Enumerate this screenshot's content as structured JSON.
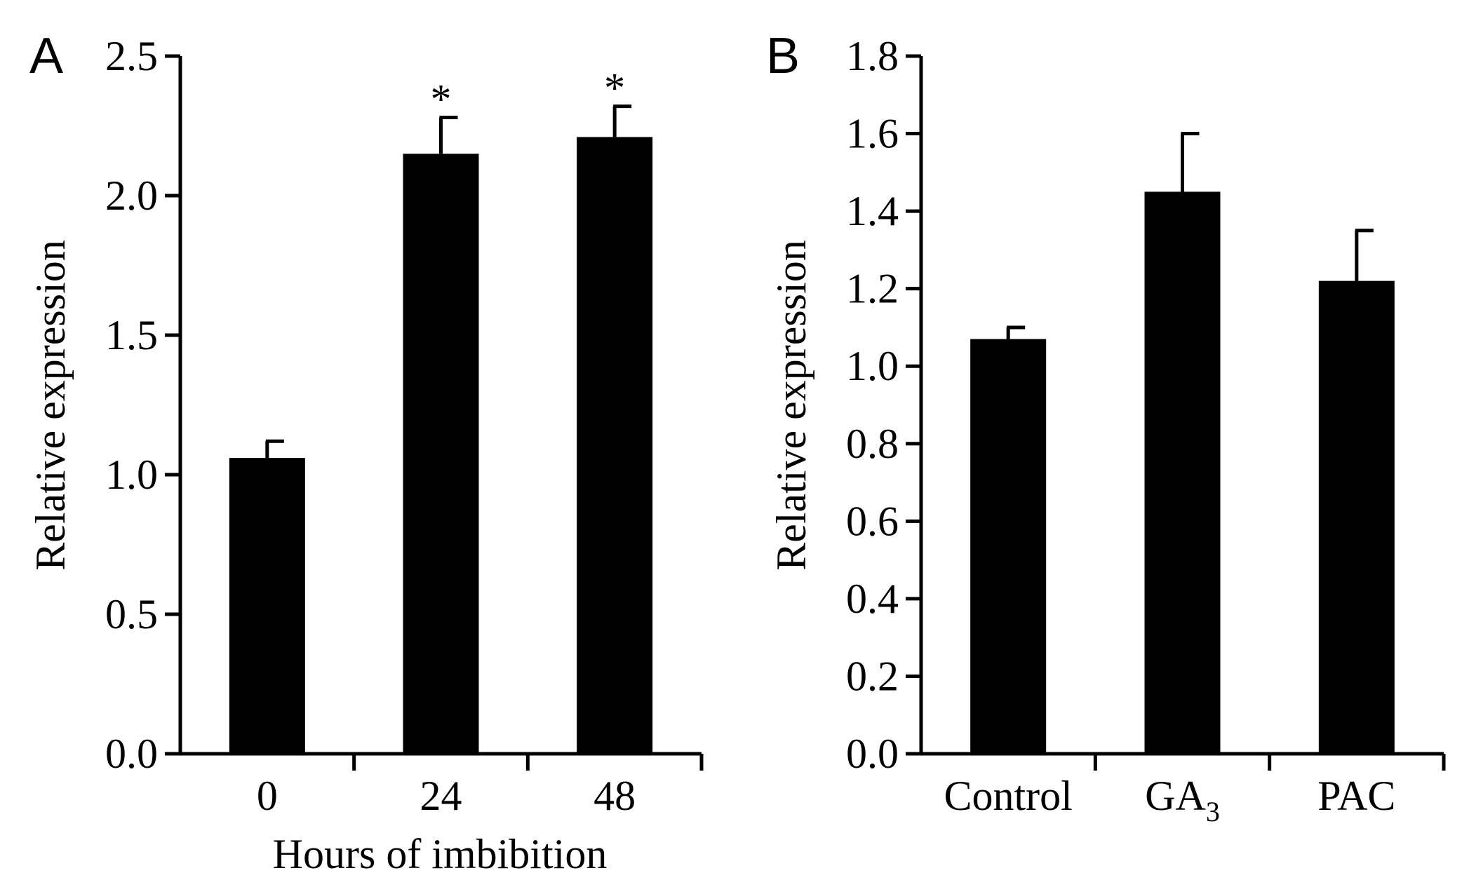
{
  "chart_data": [
    {
      "type": "bar",
      "panel": "A",
      "categories": [
        "0",
        "24",
        "48"
      ],
      "values": [
        1.06,
        2.15,
        2.21
      ],
      "errors": [
        0.06,
        0.13,
        0.11
      ],
      "annotations": [
        "",
        "*",
        "*"
      ],
      "title": "",
      "xlabel": "Hours of imbibition",
      "ylabel": "Relative expression",
      "ylim": [
        0,
        2.5
      ],
      "yticks": [
        "0.0",
        "0.5",
        "1.0",
        "1.5",
        "2.0",
        "2.5"
      ],
      "color": "#000000"
    },
    {
      "type": "bar",
      "panel": "B",
      "categories": [
        "Control",
        "GA",
        "PAC"
      ],
      "category_subscripts": [
        "",
        "3",
        ""
      ],
      "values": [
        1.07,
        1.45,
        1.22
      ],
      "errors": [
        0.03,
        0.15,
        0.13
      ],
      "annotations": [
        "",
        "",
        ""
      ],
      "title": "",
      "xlabel": "",
      "ylabel": "Relative expression",
      "ylim": [
        0,
        1.8
      ],
      "yticks": [
        "0.0",
        "0.2",
        "0.4",
        "0.6",
        "0.8",
        "1.0",
        "1.2",
        "1.4",
        "1.6",
        "1.8"
      ],
      "color": "#000000"
    }
  ]
}
